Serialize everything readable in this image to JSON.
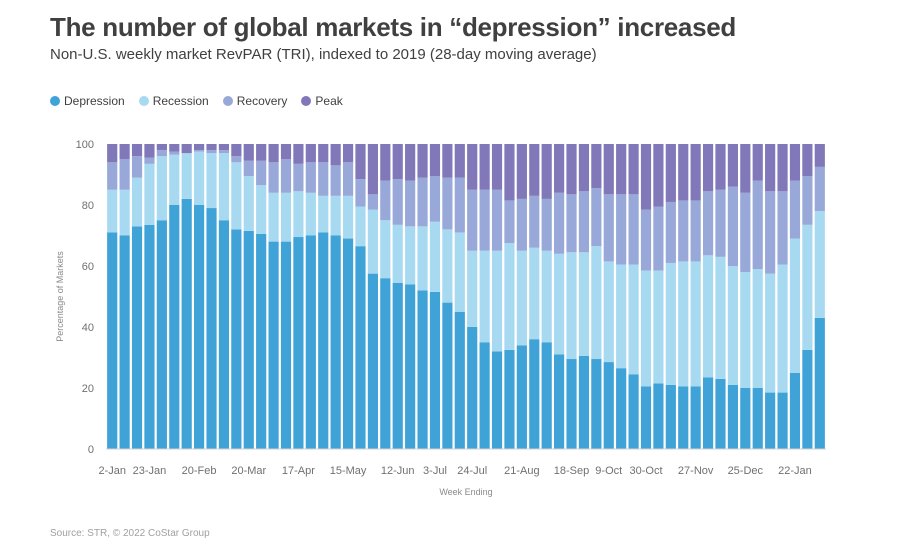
{
  "chart_data": {
    "type": "bar",
    "stacked": true,
    "title": "The number of global markets in “depression” increased",
    "subtitle": "Non-U.S. weekly market RevPAR (TRI), indexed to 2019 (28-day moving average)",
    "xlabel": "Week Ending",
    "ylabel": "Percentage of Markets",
    "ylim": [
      0,
      100
    ],
    "yticks": [
      0,
      20,
      40,
      60,
      80,
      100
    ],
    "x_tick_labels": [
      {
        "index": 0,
        "label": "2-Jan"
      },
      {
        "index": 3,
        "label": "23-Jan"
      },
      {
        "index": 7,
        "label": "20-Feb"
      },
      {
        "index": 11,
        "label": "20-Mar"
      },
      {
        "index": 15,
        "label": "17-Apr"
      },
      {
        "index": 19,
        "label": "15-May"
      },
      {
        "index": 23,
        "label": "12-Jun"
      },
      {
        "index": 26,
        "label": "3-Jul"
      },
      {
        "index": 29,
        "label": "24-Jul"
      },
      {
        "index": 33,
        "label": "21-Aug"
      },
      {
        "index": 37,
        "label": "18-Sep"
      },
      {
        "index": 40,
        "label": "9-Oct"
      },
      {
        "index": 43,
        "label": "30-Oct"
      },
      {
        "index": 47,
        "label": "27-Nov"
      },
      {
        "index": 51,
        "label": "25-Dec"
      },
      {
        "index": 55,
        "label": "22-Jan"
      }
    ],
    "legend": "top-left",
    "series": [
      {
        "name": "Depression",
        "color": "#3fa3d8",
        "values": [
          71,
          70,
          73,
          73.5,
          75,
          80,
          82,
          80,
          79,
          75,
          72,
          71.5,
          70.5,
          68,
          68,
          69.5,
          70,
          71,
          70,
          69,
          66.5,
          57.5,
          56,
          54.5,
          54,
          52,
          51.5,
          48,
          45,
          40,
          35,
          32,
          32.5,
          34,
          36,
          35,
          31,
          29.5,
          30.5,
          29.5,
          28.5,
          26.5,
          24.5,
          20.5,
          21.5,
          21,
          20.5,
          20.5,
          23.5,
          23,
          21,
          20,
          20,
          18.5,
          18.5,
          25,
          32.5,
          43
        ]
      },
      {
        "name": "Recession",
        "color": "#a7daf0",
        "values": [
          14,
          15,
          16,
          20,
          21,
          16.5,
          15,
          17.5,
          18,
          22,
          22,
          18,
          16,
          16,
          16,
          15,
          14,
          12,
          13,
          14,
          13,
          21,
          19,
          19,
          19,
          21,
          23,
          24,
          26,
          25,
          30,
          33,
          35,
          31,
          30,
          30,
          33,
          35,
          34,
          37,
          33,
          34,
          36,
          38,
          37,
          40,
          41,
          41,
          40,
          40,
          39,
          38,
          39,
          39,
          42,
          44,
          41,
          35
        ]
      },
      {
        "name": "Recovery",
        "color": "#98a8d8",
        "values": [
          9,
          10,
          7,
          2,
          2,
          1,
          0,
          0.5,
          1,
          1,
          2,
          5,
          8,
          10,
          11,
          9,
          10,
          11,
          10,
          11,
          9,
          5,
          13,
          15,
          15,
          16,
          15,
          17,
          18,
          20,
          20,
          20,
          14,
          17,
          17,
          17,
          20,
          19,
          20,
          19,
          22,
          23,
          23,
          20,
          21,
          20,
          20,
          20,
          21,
          22,
          26,
          26,
          29,
          27,
          24,
          19,
          16,
          14.5
        ]
      },
      {
        "name": "Peak",
        "color": "#8078b8",
        "values": [
          6,
          5,
          4,
          4.5,
          2,
          2.5,
          3,
          2,
          2,
          2,
          4,
          5.5,
          5.5,
          6,
          5,
          6.5,
          6,
          6,
          7,
          6,
          11.5,
          16.5,
          12,
          11.5,
          12,
          11,
          10.5,
          11,
          11,
          15,
          15,
          15,
          18.5,
          18,
          17,
          18,
          16,
          16.5,
          15.5,
          14.5,
          16.5,
          16.5,
          16.5,
          21.5,
          20.5,
          19,
          18.5,
          18.5,
          15.5,
          15,
          14,
          16,
          12,
          15.5,
          15.5,
          12,
          10.5,
          7.5
        ]
      }
    ]
  },
  "source": "Source: STR, © 2022 CoStar Group"
}
